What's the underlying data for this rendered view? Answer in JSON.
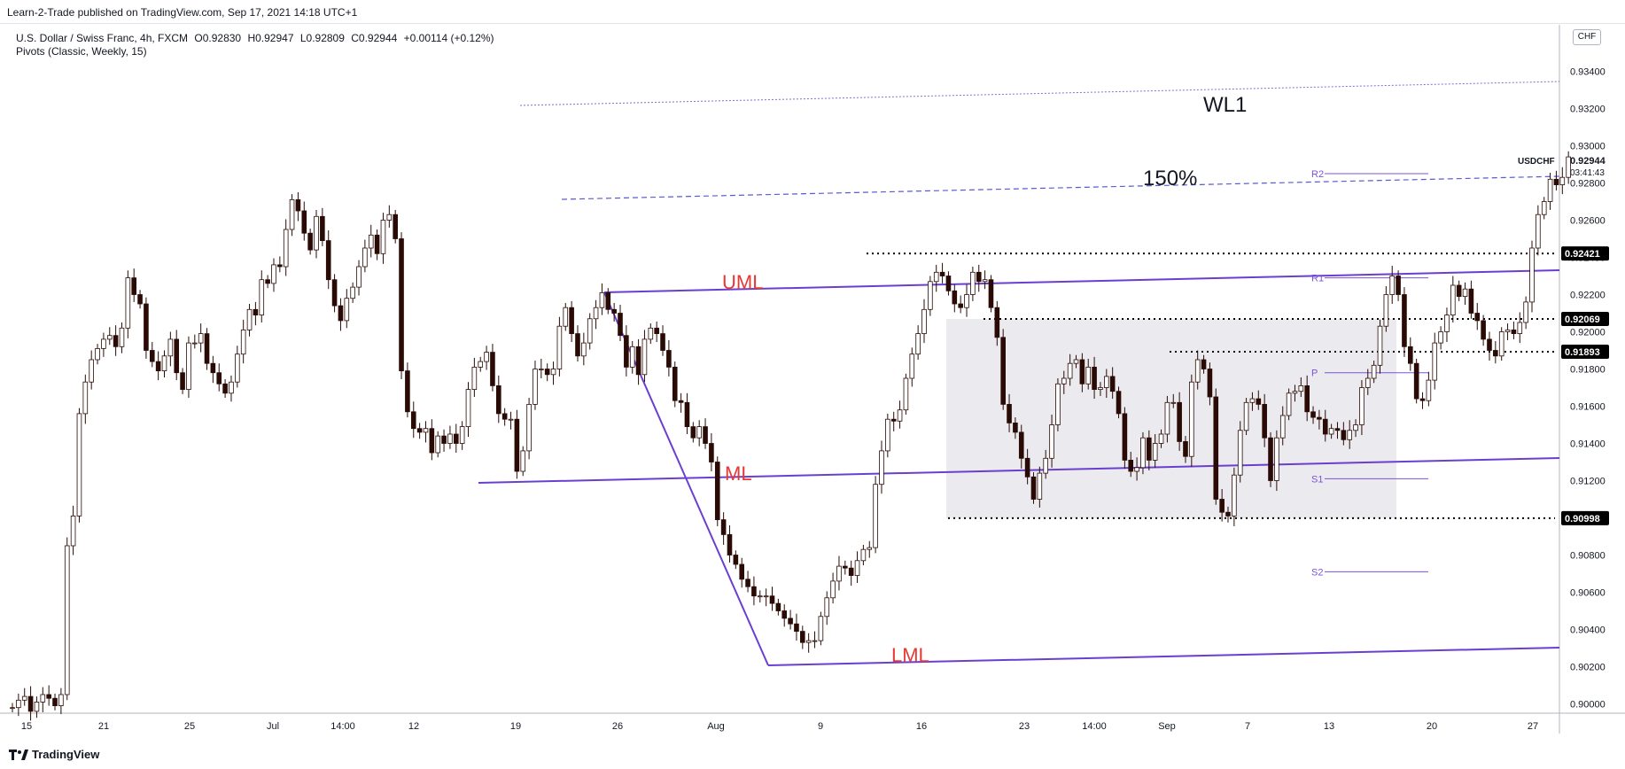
{
  "header": {
    "published": "Learn-2-Trade published on TradingView.com, Sep 17, 2021 14:18 UTC+1"
  },
  "legend": {
    "symbol": "U.S. Dollar / Swiss Franc, 4h, FXCM",
    "open": "O0.92830",
    "high": "H0.92947",
    "low": "L0.92809",
    "close": "C0.92944",
    "change": "+0.00114 (+0.12%)",
    "indicator": "Pivots (Classic, Weekly, 15)"
  },
  "currency_badge": "CHF",
  "footer": {
    "brand": "TradingView"
  },
  "colors": {
    "candle_up": "#ffffff",
    "candle_down": "#2a0a05",
    "channel": "#6a3fd0",
    "pivot": "#7b52d6",
    "channel_label": "#e53935",
    "range_box": "#e6e6ec"
  },
  "chart_data": {
    "type": "candlestick",
    "symbol": "USDCHF",
    "timeframe": "4h",
    "x_tick_labels": [
      "15",
      "21",
      "25",
      "Jul",
      "14:00",
      "12",
      "19",
      "26",
      "Aug",
      "9",
      "16",
      "23",
      "14:00",
      "Sep",
      "7",
      "13",
      "20",
      "27"
    ],
    "y_tick_labels": [
      "0.93400",
      "0.93200",
      "0.93000",
      "0.92800",
      "0.92600",
      "0.92400",
      "0.92200",
      "0.92000",
      "0.91800",
      "0.91600",
      "0.91400",
      "0.91200",
      "0.91000",
      "0.90800",
      "0.90600",
      "0.90400",
      "0.90200",
      "0.90000"
    ],
    "ylim": [
      0.8995,
      0.9365
    ],
    "last_price": {
      "symbol": "USDCHF",
      "value": "0.92944",
      "countdown": "03:41:43"
    },
    "price_markers": [
      "0.92421",
      "0.92069",
      "0.91893",
      "0.90998"
    ],
    "horizontal_levels": [
      0.92421,
      0.92069,
      0.91893,
      0.90998
    ],
    "pivots": [
      {
        "label": "R2",
        "value": 0.9285
      },
      {
        "label": "R1",
        "value": 0.9229
      },
      {
        "label": "P",
        "value": 0.9178
      },
      {
        "label": "S1",
        "value": 0.9121
      },
      {
        "label": "S2",
        "value": 0.9071
      }
    ],
    "annotations": [
      "WL1",
      "150%",
      "UML",
      "ML",
      "LML"
    ],
    "closes": [
      0.8998,
      0.9002,
      0.9004,
      0.8996,
      0.9001,
      0.9005,
      0.9003,
      0.8999,
      0.9005,
      0.9085,
      0.9101,
      0.9156,
      0.9173,
      0.9185,
      0.9191,
      0.9196,
      0.9198,
      0.9192,
      0.9202,
      0.9229,
      0.922,
      0.9215,
      0.919,
      0.9184,
      0.9179,
      0.9187,
      0.9196,
      0.9178,
      0.9169,
      0.9194,
      0.9194,
      0.9199,
      0.9183,
      0.9178,
      0.9172,
      0.9167,
      0.9173,
      0.9188,
      0.9201,
      0.9212,
      0.9209,
      0.9228,
      0.9226,
      0.9236,
      0.9235,
      0.9255,
      0.9271,
      0.9265,
      0.9253,
      0.9244,
      0.9262,
      0.9249,
      0.9228,
      0.9214,
      0.9206,
      0.9218,
      0.9224,
      0.9235,
      0.9245,
      0.9252,
      0.9242,
      0.926,
      0.9263,
      0.925,
      0.9179,
      0.9157,
      0.9148,
      0.9146,
      0.9148,
      0.9135,
      0.9144,
      0.914,
      0.9145,
      0.914,
      0.9149,
      0.9169,
      0.9181,
      0.9184,
      0.9189,
      0.9171,
      0.9156,
      0.9153,
      0.9153,
      0.9125,
      0.9136,
      0.9161,
      0.918,
      0.918,
      0.9177,
      0.918,
      0.9203,
      0.9213,
      0.9199,
      0.9187,
      0.9194,
      0.9207,
      0.9213,
      0.9221,
      0.9212,
      0.921,
      0.9198,
      0.9181,
      0.9192,
      0.9177,
      0.9196,
      0.9202,
      0.9199,
      0.919,
      0.9181,
      0.9163,
      0.9162,
      0.9149,
      0.9143,
      0.9149,
      0.914,
      0.913,
      0.9099,
      0.9091,
      0.908,
      0.9075,
      0.9067,
      0.9063,
      0.9058,
      0.9058,
      0.9058,
      0.9054,
      0.905,
      0.9046,
      0.9043,
      0.9039,
      0.9033,
      0.9034,
      0.9034,
      0.9047,
      0.9057,
      0.9066,
      0.9074,
      0.9073,
      0.9069,
      0.9077,
      0.9083,
      0.9084,
      0.9118,
      0.9136,
      0.9153,
      0.9152,
      0.9158,
      0.9175,
      0.9188,
      0.9199,
      0.9212,
      0.9227,
      0.9232,
      0.923,
      0.9222,
      0.9215,
      0.9213,
      0.922,
      0.9232,
      0.9227,
      0.9228,
      0.9213,
      0.9197,
      0.9161,
      0.9151,
      0.9146,
      0.9132,
      0.9122,
      0.911,
      0.9124,
      0.9132,
      0.915,
      0.9172,
      0.9175,
      0.9183,
      0.9185,
      0.9172,
      0.9181,
      0.9169,
      0.917,
      0.9176,
      0.9168,
      0.9156,
      0.9131,
      0.9125,
      0.9127,
      0.9143,
      0.9131,
      0.914,
      0.9145,
      0.9162,
      0.9162,
      0.9141,
      0.9133,
      0.9173,
      0.9185,
      0.918,
      0.9165,
      0.911,
      0.9103,
      0.9101,
      0.9123,
      0.9147,
      0.9162,
      0.9164,
      0.9161,
      0.9143,
      0.912,
      0.9143,
      0.9155,
      0.9167,
      0.9168,
      0.9171,
      0.9157,
      0.9154,
      0.9153,
      0.9145,
      0.9148,
      0.9147,
      0.9142,
      0.9147,
      0.915,
      0.917,
      0.9175,
      0.9182,
      0.9203,
      0.922,
      0.923,
      0.922,
      0.9192,
      0.9183,
      0.9164,
      0.9163,
      0.9174,
      0.9194,
      0.92,
      0.9209,
      0.9225,
      0.9219,
      0.9223,
      0.921,
      0.9206,
      0.9196,
      0.919,
      0.9187,
      0.92,
      0.9201,
      0.9199,
      0.9205,
      0.9216,
      0.9245,
      0.9263,
      0.927,
      0.9282,
      0.9279,
      0.9283,
      0.9294
    ]
  }
}
